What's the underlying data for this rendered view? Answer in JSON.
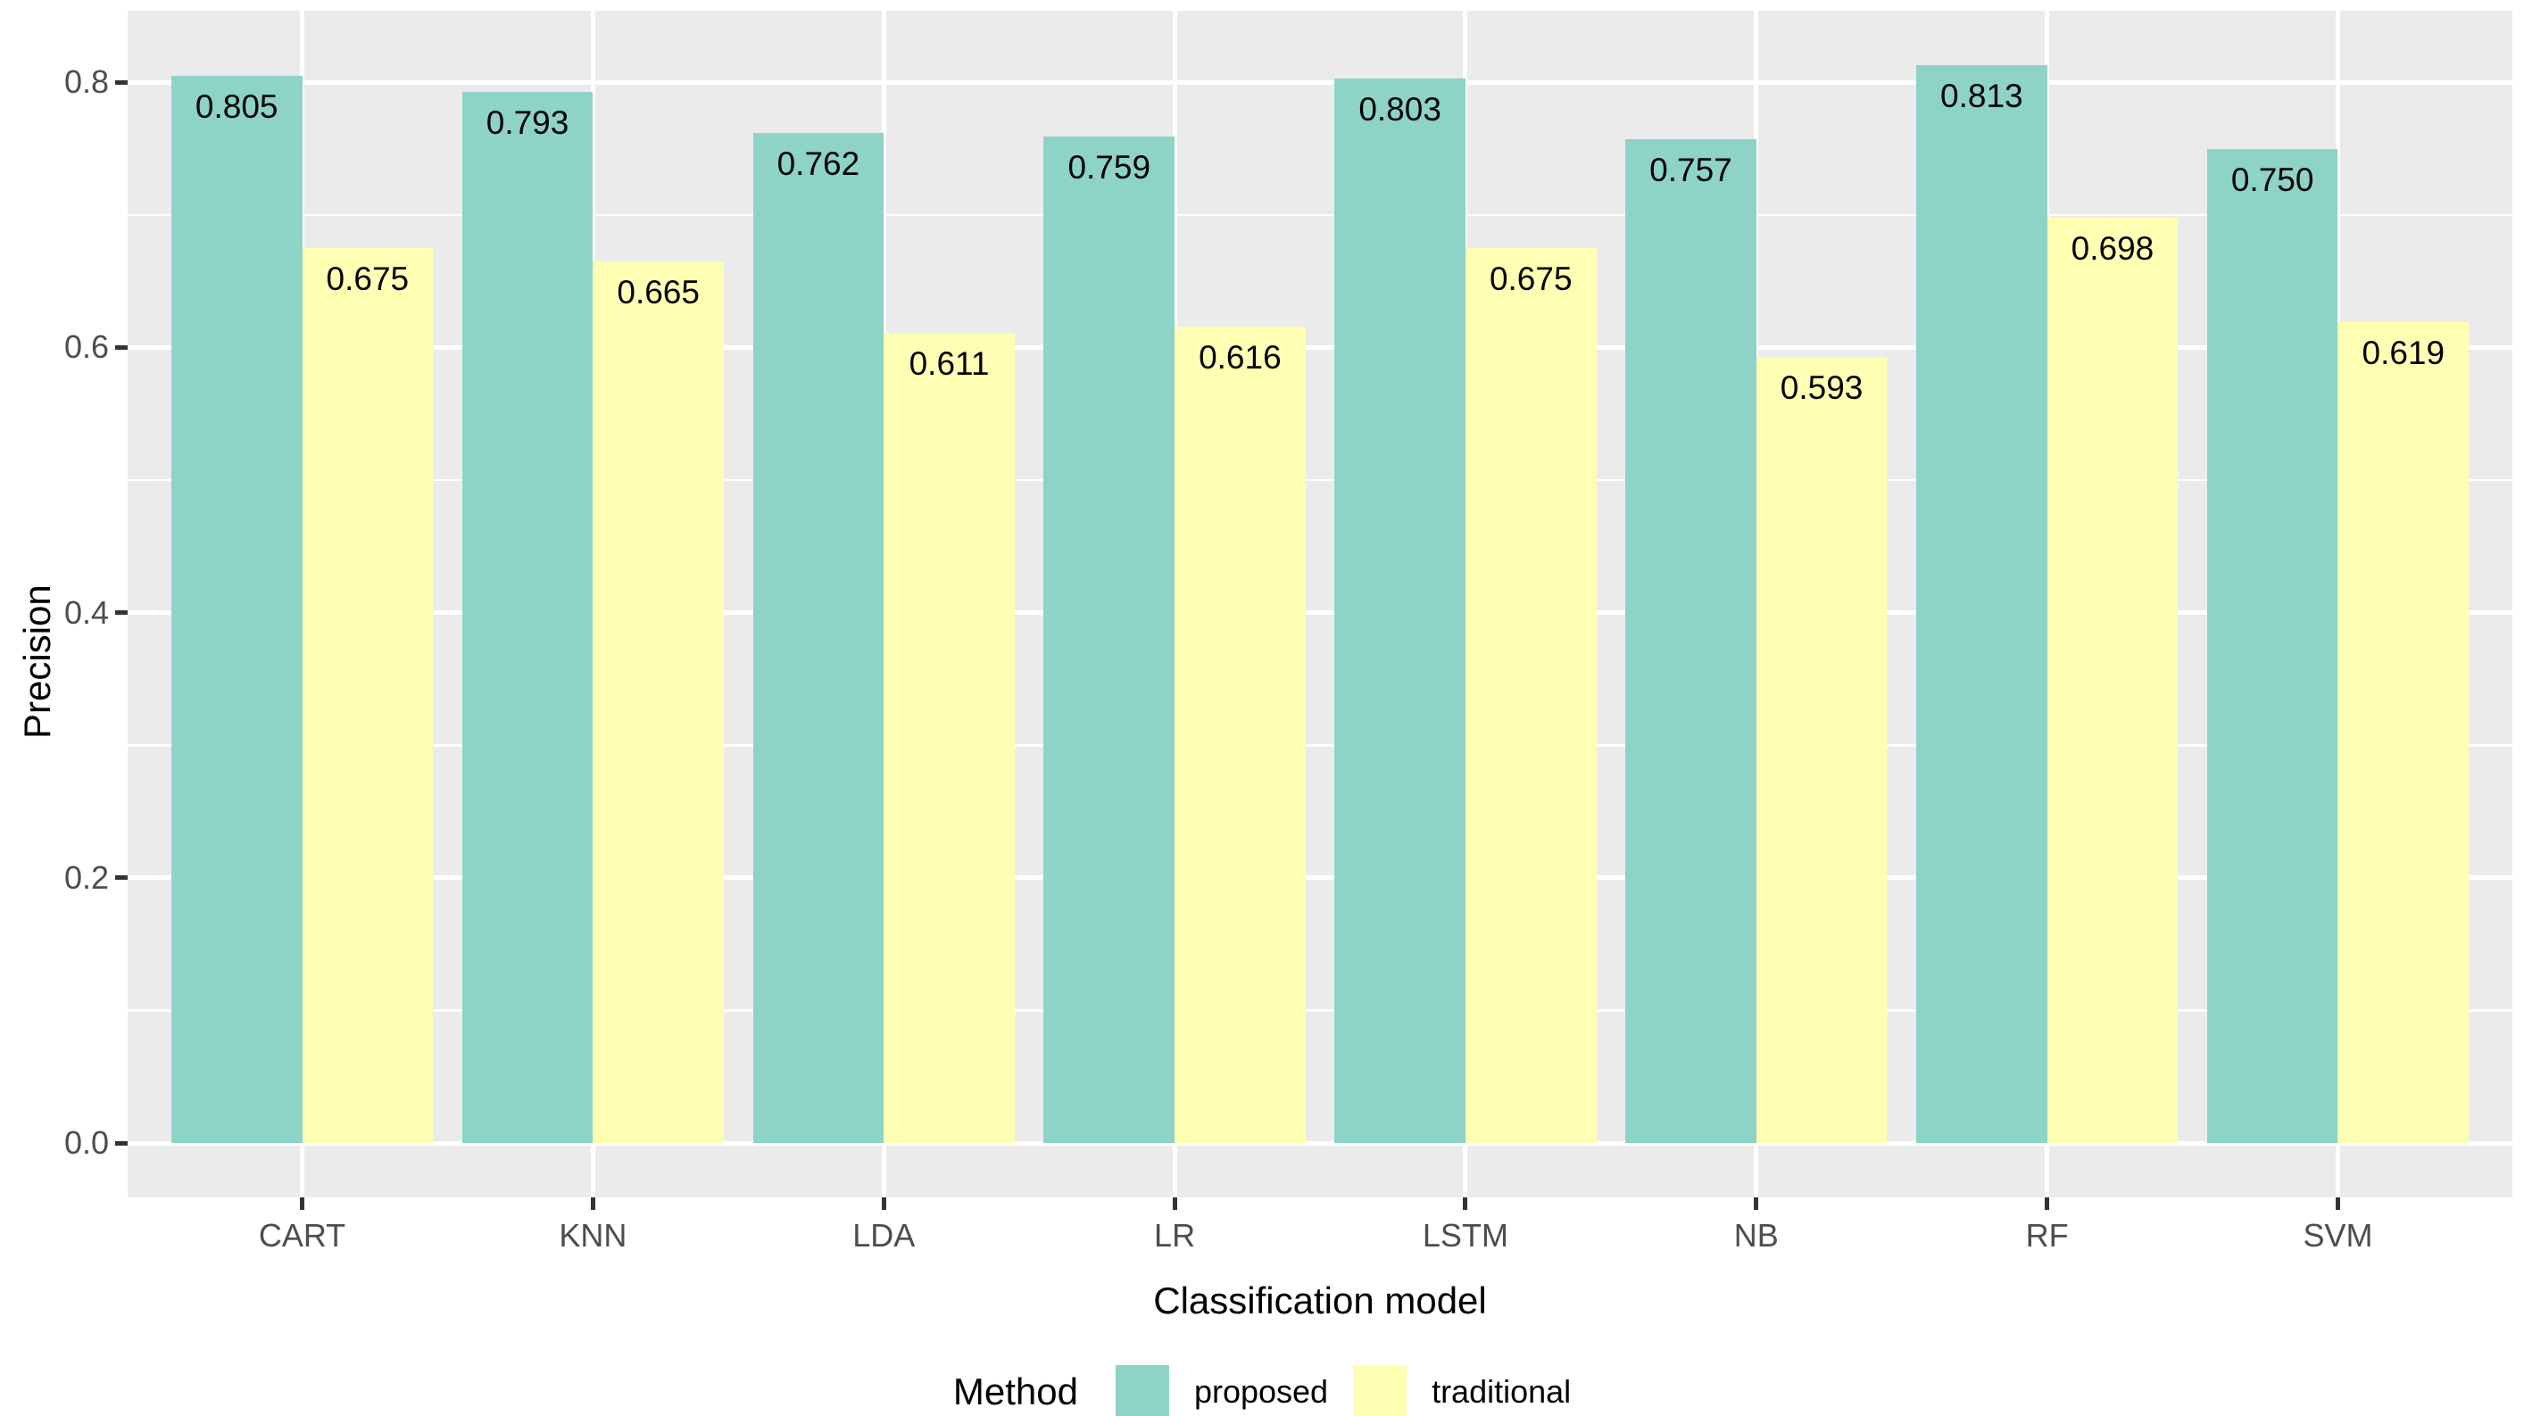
{
  "chart_data": {
    "type": "bar",
    "categories": [
      "CART",
      "KNN",
      "LDA",
      "LR",
      "LSTM",
      "NB",
      "RF",
      "SVM"
    ],
    "series": [
      {
        "name": "proposed",
        "color": "#8DD3C7",
        "values": [
          0.805,
          0.793,
          0.762,
          0.759,
          0.803,
          0.757,
          0.813,
          0.75
        ],
        "labels": [
          "0.805",
          "0.793",
          "0.762",
          "0.759",
          "0.803",
          "0.757",
          "0.813",
          "0.750"
        ]
      },
      {
        "name": "traditional",
        "color": "#FFFFB3",
        "values": [
          0.675,
          0.665,
          0.611,
          0.616,
          0.675,
          0.593,
          0.698,
          0.619
        ],
        "labels": [
          "0.675",
          "0.665",
          "0.611",
          "0.616",
          "0.675",
          "0.593",
          "0.698",
          "0.619"
        ]
      }
    ],
    "title": "",
    "xlabel": "Classification model",
    "ylabel": "Precision",
    "ylim": [
      -0.041,
      0.854
    ],
    "yticks": [
      0.0,
      0.2,
      0.4,
      0.6,
      0.8
    ],
    "ytick_labels": [
      "0.0",
      "0.2",
      "0.4",
      "0.6",
      "0.8"
    ],
    "minor_yticks": [
      0.1,
      0.3,
      0.5,
      0.7
    ],
    "grid": true,
    "legend": {
      "title": "Method",
      "position": "bottom"
    }
  },
  "style": {
    "panel_bg": "#EBEBEB",
    "grid_color": "#FFFFFF",
    "tick_label_color": "#4D4D4D",
    "axis_title_color": "#000000",
    "tick_mark_color": "#333333"
  }
}
